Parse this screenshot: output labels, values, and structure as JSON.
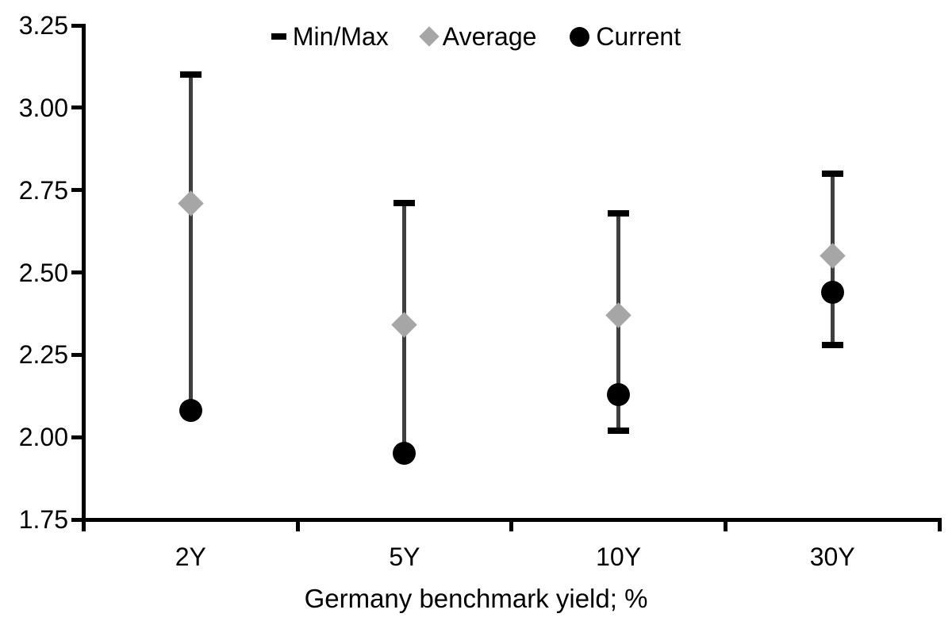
{
  "legend": {
    "items": [
      "Min/Max",
      "Average",
      "Current"
    ]
  },
  "colors": {
    "minmax_cap": "#000000",
    "range_line": "#3f3f3f",
    "average_marker": "#a6a6a6",
    "current_marker": "#000000",
    "axis_and_text": "#000000",
    "background": "#ffffff"
  },
  "chart_data": {
    "type": "scatter",
    "subtype": "min-max-range-with-average-and-current",
    "title": "",
    "xlabel": "Germany benchmark yield; %",
    "ylabel": "",
    "categories": [
      "2Y",
      "5Y",
      "10Y",
      "30Y"
    ],
    "series": [
      {
        "name": "Min/Max",
        "min": [
          2.08,
          1.95,
          2.02,
          2.28
        ],
        "max": [
          3.1,
          2.71,
          2.68,
          2.8
        ]
      },
      {
        "name": "Average",
        "values": [
          2.71,
          2.34,
          2.37,
          2.55
        ]
      },
      {
        "name": "Current",
        "values": [
          2.08,
          1.95,
          2.13,
          2.44
        ]
      }
    ],
    "ylim": [
      1.75,
      3.25
    ],
    "y_ticks": [
      "3.25",
      "3.00",
      "2.75",
      "2.50",
      "2.25",
      "2.00",
      "1.75"
    ],
    "grid": false,
    "legend_position": "top-center"
  }
}
